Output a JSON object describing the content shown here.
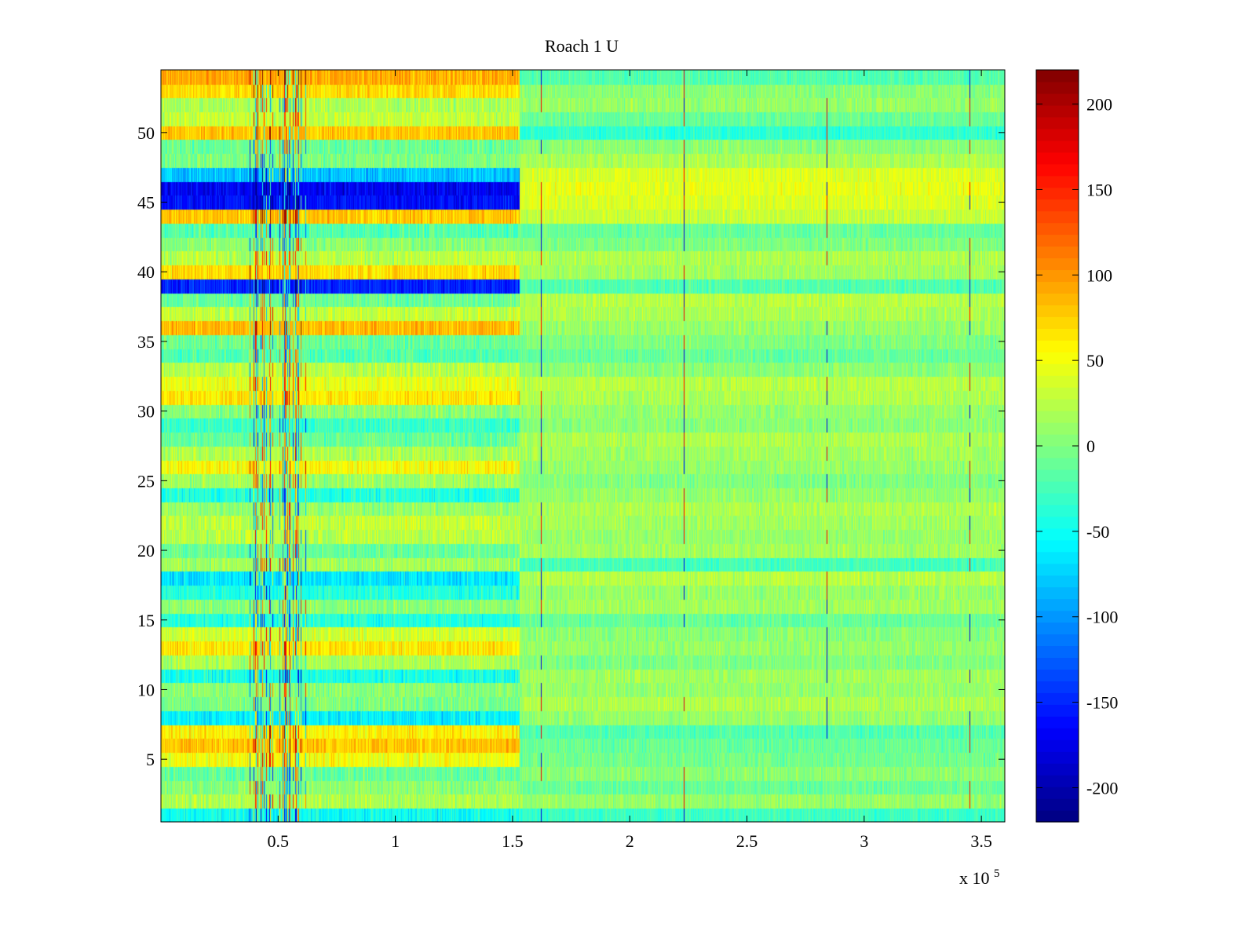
{
  "chart_data": {
    "type": "heatmap",
    "title": "Roach 1 U",
    "xlabel": "",
    "ylabel": "",
    "x_multiplier_label": {
      "base": "x 10",
      "exponent": "5"
    },
    "xlim": [
      0,
      3.6
    ],
    "ylim": [
      0.5,
      54.5
    ],
    "x_ticks": [
      {
        "value": 0.5,
        "label": "0.5"
      },
      {
        "value": 1.0,
        "label": "1"
      },
      {
        "value": 1.5,
        "label": "1.5"
      },
      {
        "value": 2.0,
        "label": "2"
      },
      {
        "value": 2.5,
        "label": "2.5"
      },
      {
        "value": 3.0,
        "label": "3"
      },
      {
        "value": 3.5,
        "label": "3.5"
      }
    ],
    "y_ticks": [
      {
        "value": 5,
        "label": "5"
      },
      {
        "value": 10,
        "label": "10"
      },
      {
        "value": 15,
        "label": "15"
      },
      {
        "value": 20,
        "label": "20"
      },
      {
        "value": 25,
        "label": "25"
      },
      {
        "value": 30,
        "label": "30"
      },
      {
        "value": 35,
        "label": "35"
      },
      {
        "value": 40,
        "label": "40"
      },
      {
        "value": 45,
        "label": "45"
      },
      {
        "value": 50,
        "label": "50"
      }
    ],
    "colorbar": {
      "colormap": "jet",
      "range": [
        -220,
        220
      ],
      "ticks": [
        {
          "value": 200,
          "label": "200"
        },
        {
          "value": 150,
          "label": "150"
        },
        {
          "value": 100,
          "label": "100"
        },
        {
          "value": 50,
          "label": "50"
        },
        {
          "value": 0,
          "label": "0"
        },
        {
          "value": -50,
          "label": "-50"
        },
        {
          "value": -100,
          "label": "-100"
        },
        {
          "value": -150,
          "label": "-150"
        },
        {
          "value": -200,
          "label": "-200"
        }
      ]
    },
    "rows": 54,
    "segment_boundary_x": 1.53,
    "row_means_first_segment": [
      -50,
      20,
      5,
      -10,
      50,
      80,
      60,
      -60,
      0,
      5,
      -45,
      20,
      65,
      35,
      -40,
      5,
      -40,
      -65,
      15,
      -10,
      25,
      30,
      10,
      -40,
      15,
      55,
      20,
      -10,
      -30,
      5,
      65,
      45,
      25,
      -20,
      -10,
      85,
      30,
      -10,
      -150,
      70,
      25,
      5,
      -20,
      80,
      -160,
      -170,
      -80,
      0,
      -10,
      80,
      30,
      20,
      70,
      90
    ],
    "row_means_second_segment": [
      -30,
      10,
      -10,
      5,
      -5,
      -10,
      -20,
      10,
      20,
      10,
      15,
      0,
      10,
      5,
      -10,
      15,
      10,
      25,
      -25,
      15,
      10,
      15,
      20,
      10,
      0,
      10,
      15,
      20,
      5,
      10,
      20,
      25,
      5,
      -10,
      0,
      10,
      20,
      25,
      -20,
      15,
      20,
      0,
      -10,
      30,
      40,
      45,
      40,
      20,
      5,
      -35,
      -10,
      10,
      5,
      -20
    ],
    "periodic_spike_x": [
      1.62,
      2.23,
      2.84,
      3.45
    ],
    "dark_vertical_bands_x_range": [
      0.35,
      0.62
    ]
  }
}
